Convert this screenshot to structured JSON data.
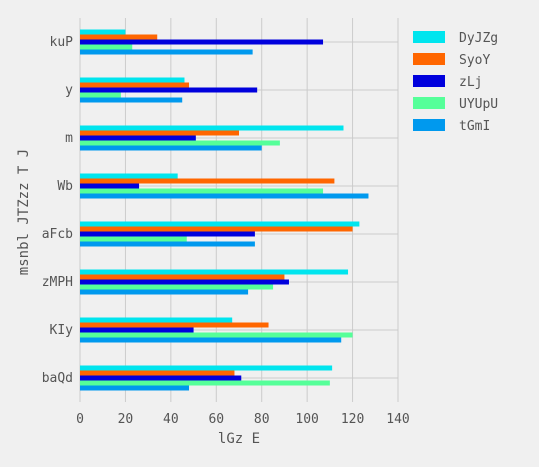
{
  "chart_data": {
    "type": "bar",
    "orientation": "horizontal",
    "categories": [
      "kuP",
      "y",
      "m",
      "Wb",
      "aFcb",
      "zMPH",
      "KIy",
      "baQd"
    ],
    "series": [
      {
        "name": "DyJZg",
        "color": "#00e5ee",
        "values": [
          20,
          46,
          116,
          43,
          123,
          118,
          67,
          111
        ]
      },
      {
        "name": "SyoY",
        "color": "#ff6600",
        "values": [
          34,
          48,
          70,
          112,
          120,
          90,
          83,
          68
        ]
      },
      {
        "name": "zLj",
        "color": "#0000dd",
        "values": [
          107,
          78,
          51,
          26,
          77,
          92,
          50,
          71
        ]
      },
      {
        "name": "UYUpU",
        "color": "#55ff99",
        "values": [
          23,
          18,
          88,
          107,
          47,
          85,
          120,
          110
        ]
      },
      {
        "name": "tGmI",
        "color": "#0099ee",
        "values": [
          76,
          45,
          80,
          127,
          77,
          74,
          115,
          48
        ]
      }
    ],
    "xlabel": "lGz E",
    "ylabel": "msnbl JTZzz T J",
    "xlim": [
      0,
      140
    ],
    "xticks": [
      0,
      20,
      40,
      60,
      80,
      100,
      120,
      140
    ],
    "grid": true,
    "legend_position": "top-right"
  }
}
